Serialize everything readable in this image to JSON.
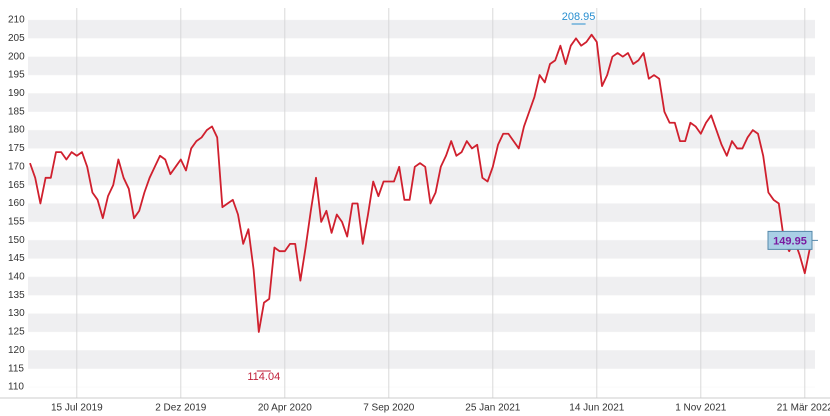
{
  "chart_data": {
    "type": "line",
    "categories": [
      null,
      null,
      null,
      null,
      null,
      null,
      null,
      null,
      null,
      "15 Jul 2019",
      null,
      null,
      null,
      null,
      null,
      null,
      null,
      null,
      null,
      null,
      null,
      null,
      null,
      null,
      null,
      null,
      null,
      null,
      null,
      "2 Dez 2019",
      null,
      null,
      null,
      null,
      null,
      null,
      null,
      null,
      null,
      null,
      null,
      null,
      null,
      null,
      null,
      null,
      null,
      null,
      null,
      "20 Apr 2020",
      null,
      null,
      null,
      null,
      null,
      null,
      null,
      null,
      null,
      null,
      null,
      null,
      null,
      null,
      null,
      null,
      null,
      null,
      null,
      "7 Sep 2020",
      null,
      null,
      null,
      null,
      null,
      null,
      null,
      null,
      null,
      null,
      null,
      null,
      null,
      null,
      null,
      null,
      null,
      null,
      null,
      "25 Jan 2021",
      null,
      null,
      null,
      null,
      null,
      null,
      null,
      null,
      null,
      null,
      null,
      null,
      null,
      null,
      null,
      null,
      null,
      null,
      null,
      "14 Jun 2021",
      null,
      null,
      null,
      null,
      null,
      null,
      null,
      null,
      null,
      null,
      null,
      null,
      null,
      null,
      null,
      null,
      null,
      null,
      null,
      "1 Nov 2021",
      null,
      null,
      null,
      null,
      null,
      null,
      null,
      null,
      null,
      null,
      null,
      null,
      null,
      null,
      null,
      null,
      null,
      null,
      null,
      "21 Mär 2022",
      null
    ],
    "series": [
      {
        "color": "#d0202e",
        "values": [
          171,
          167,
          160,
          167,
          167,
          174,
          174,
          172,
          174,
          173,
          174,
          170,
          163,
          161,
          156,
          162,
          165,
          172,
          167,
          164,
          156,
          158,
          163,
          167,
          170,
          173,
          172,
          168,
          170,
          172,
          169,
          175,
          177,
          178,
          180,
          181,
          178,
          159,
          160,
          161,
          157,
          149,
          153,
          142,
          125,
          133,
          134,
          148,
          147,
          147,
          149,
          149,
          139,
          148,
          158,
          167,
          155,
          158,
          152,
          157,
          155,
          151,
          160,
          160,
          149,
          157,
          166,
          162,
          166,
          166,
          166,
          170,
          161,
          161,
          170,
          171,
          170,
          160,
          163,
          170,
          173,
          177,
          173,
          174,
          177,
          175,
          176,
          167,
          166,
          170,
          176,
          179,
          179,
          177,
          175,
          181,
          185,
          189,
          195,
          193,
          198,
          199,
          203,
          198,
          203,
          205,
          203,
          204,
          206,
          204,
          192,
          195,
          200,
          201,
          200,
          201,
          198,
          199,
          201,
          194,
          195,
          194,
          185,
          182,
          182,
          177,
          177,
          182,
          181,
          179,
          182,
          184,
          180,
          176,
          173,
          177,
          175,
          175,
          178,
          180,
          179,
          173,
          163,
          161,
          160,
          150,
          147,
          150,
          146,
          141,
          148
        ]
      }
    ],
    "ylim": [
      110,
      210
    ],
    "yticks": [
      110,
      115,
      120,
      125,
      130,
      135,
      140,
      145,
      150,
      155,
      160,
      165,
      170,
      175,
      180,
      185,
      190,
      195,
      200,
      205,
      210
    ],
    "max": 208.95,
    "min": 114.04,
    "last": 149.95,
    "grid": true
  }
}
